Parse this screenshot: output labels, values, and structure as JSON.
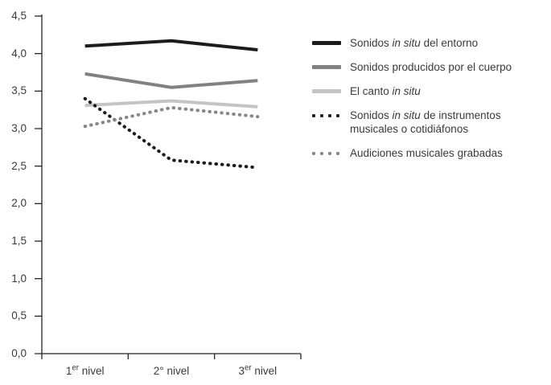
{
  "figure": {
    "background": "#ffffff",
    "axis_color": "#262626",
    "text_color": "#3a3a3a"
  },
  "chart_data": {
    "type": "line",
    "title": "",
    "xlabel": "",
    "ylabel": "",
    "grid": false,
    "legend_position": "right",
    "ylim": [
      0,
      4.5
    ],
    "ytick_step": 0.5,
    "ytick_labels": [
      "0,0",
      "0,5",
      "1,0",
      "1,5",
      "2,0",
      "2,5",
      "3,0",
      "3,5",
      "4,0",
      "4,5"
    ],
    "categories": [
      "1er nivel",
      "2° nivel",
      "3er nivel"
    ],
    "categories_rich": [
      [
        {
          "text": "1"
        },
        {
          "text": "er",
          "sup": true
        },
        {
          "text": " nivel"
        }
      ],
      [
        {
          "text": "2"
        },
        {
          "text": "°"
        },
        {
          "text": " nivel"
        }
      ],
      [
        {
          "text": "3"
        },
        {
          "text": "er",
          "sup": true
        },
        {
          "text": " nivel"
        }
      ]
    ],
    "series": [
      {
        "name": "Sonidos in situ del entorno",
        "name_segments": [
          {
            "text": "Sonidos "
          },
          {
            "text": "in situ",
            "italic": true
          },
          {
            "text": " del entorno"
          }
        ],
        "line_style": "solid",
        "color": "#1c1c1c",
        "values": [
          4.1,
          4.17,
          4.05
        ]
      },
      {
        "name": "Sonidos producidos por el cuerpo",
        "name_segments": [
          {
            "text": "Sonidos producidos por el cuerpo"
          }
        ],
        "line_style": "solid",
        "color": "#818181",
        "values": [
          3.73,
          3.55,
          3.64
        ]
      },
      {
        "name": "El canto in situ",
        "name_segments": [
          {
            "text": "El canto "
          },
          {
            "text": "in situ",
            "italic": true
          }
        ],
        "line_style": "solid",
        "color": "#c4c4c4",
        "values": [
          3.31,
          3.37,
          3.29
        ]
      },
      {
        "name": "Sonidos in situ de instrumentos musicales o cotidiáfonos",
        "name_segments": [
          {
            "text": "Sonidos "
          },
          {
            "text": "in situ",
            "italic": true
          },
          {
            "text": " de instrumentos musicales o cotidiáfonos"
          }
        ],
        "line_style": "dotted",
        "color": "#1c1c1c",
        "values": [
          3.4,
          2.58,
          2.48
        ]
      },
      {
        "name": "Audiciones musicales grabadas",
        "name_segments": [
          {
            "text": "Audiciones musicales grabadas"
          }
        ],
        "line_style": "dotted",
        "color": "#878787",
        "values": [
          3.03,
          3.28,
          3.16
        ]
      }
    ]
  }
}
